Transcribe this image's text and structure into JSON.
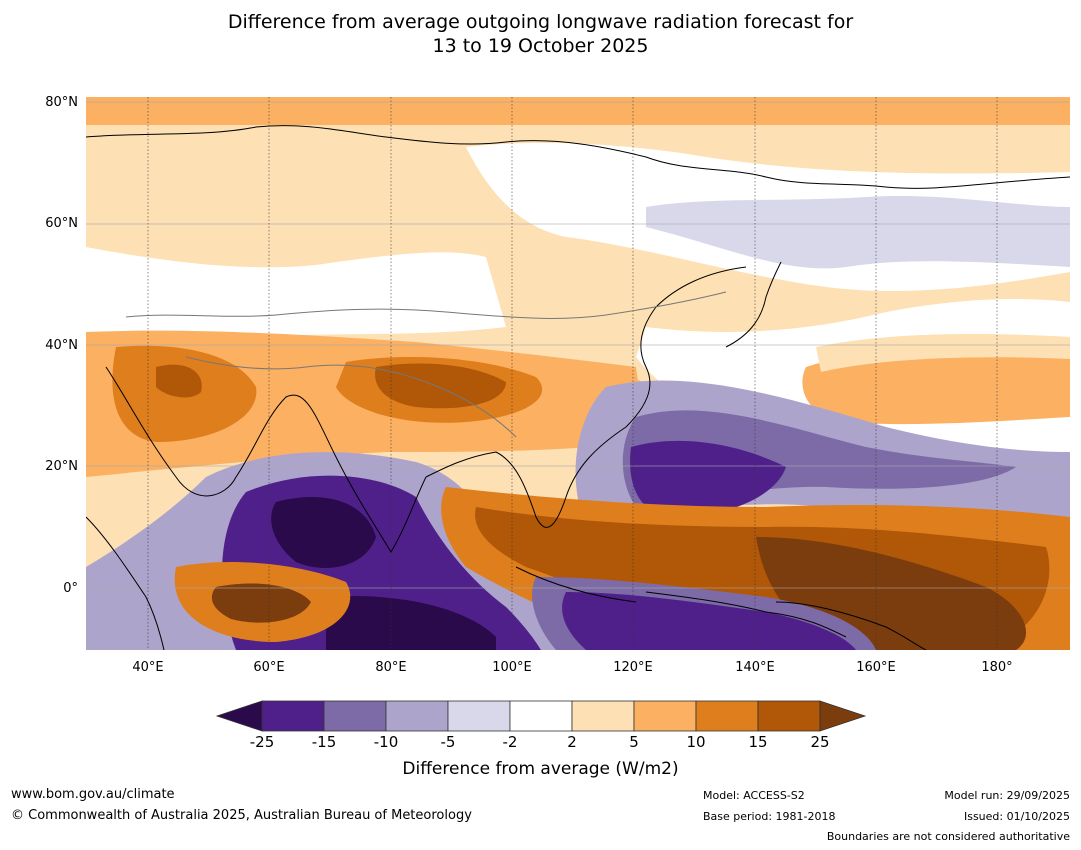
{
  "title": {
    "line1": "Difference from average outgoing longwave radiation forecast for",
    "line2": "13 to 19 October 2025"
  },
  "axes": {
    "lat_labels": [
      "80°N",
      "60°N",
      "40°N",
      "20°N",
      "0°"
    ],
    "lon_labels": [
      "40°E",
      "60°E",
      "80°E",
      "100°E",
      "120°E",
      "140°E",
      "160°E",
      "180°"
    ]
  },
  "colorbar": {
    "ticks": [
      "-25",
      "-15",
      "-10",
      "-5",
      "-2",
      "2",
      "5",
      "10",
      "15",
      "25"
    ],
    "colors": [
      "#2a0a4a",
      "#4f208a",
      "#7d6ba8",
      "#ada4cc",
      "#d8d8ea",
      "#ffffff",
      "#fde0b4",
      "#fbb062",
      "#df7e1c",
      "#b05808",
      "#7b3c0e"
    ],
    "label": "Difference from average (W/m2)"
  },
  "footer": {
    "website": "www.bom.gov.au/climate",
    "copyright": "© Commonwealth of Australia 2025, Australian Bureau of Meteorology",
    "model": "Model: ACCESS-S2",
    "base_period": "Base period: 1981-2018",
    "model_run": "Model run: 29/09/2025",
    "issued": "Issued: 01/10/2025",
    "disclaimer": "Boundaries are not considered authoritative"
  }
}
